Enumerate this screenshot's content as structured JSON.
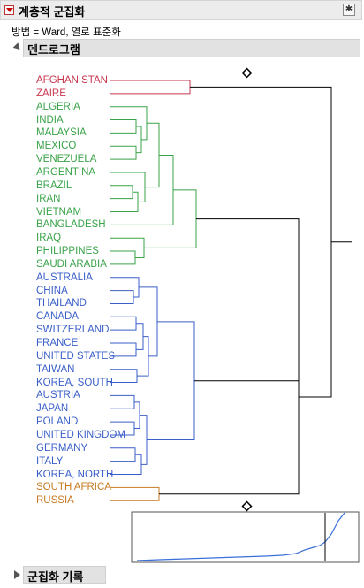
{
  "header": {
    "title": "계층적 군집화"
  },
  "method_text": "방법 = Ward, 열로 표준화",
  "dendrogram": {
    "title": "덴드로그램",
    "countries": [
      {
        "name": "AFGHANISTAN",
        "cluster": "red"
      },
      {
        "name": "ZAIRE",
        "cluster": "red"
      },
      {
        "name": "ALGERIA",
        "cluster": "green"
      },
      {
        "name": "INDIA",
        "cluster": "green"
      },
      {
        "name": "MALAYSIA",
        "cluster": "green"
      },
      {
        "name": "MEXICO",
        "cluster": "green"
      },
      {
        "name": "VENEZUELA",
        "cluster": "green"
      },
      {
        "name": "ARGENTINA",
        "cluster": "green"
      },
      {
        "name": "BRAZIL",
        "cluster": "green"
      },
      {
        "name": "IRAN",
        "cluster": "green"
      },
      {
        "name": "VIETNAM",
        "cluster": "green"
      },
      {
        "name": "BANGLADESH",
        "cluster": "green"
      },
      {
        "name": "IRAQ",
        "cluster": "green"
      },
      {
        "name": "PHILIPPINES",
        "cluster": "green"
      },
      {
        "name": "SAUDI ARABIA",
        "cluster": "green"
      },
      {
        "name": "AUSTRALIA",
        "cluster": "blue"
      },
      {
        "name": "CHINA",
        "cluster": "blue"
      },
      {
        "name": "THAILAND",
        "cluster": "blue"
      },
      {
        "name": "CANADA",
        "cluster": "blue"
      },
      {
        "name": "SWITZERLAND",
        "cluster": "blue"
      },
      {
        "name": "FRANCE",
        "cluster": "blue"
      },
      {
        "name": "UNITED STATES",
        "cluster": "blue"
      },
      {
        "name": "TAIWAN",
        "cluster": "blue"
      },
      {
        "name": "KOREA, SOUTH",
        "cluster": "blue"
      },
      {
        "name": "AUSTRIA",
        "cluster": "blue"
      },
      {
        "name": "JAPAN",
        "cluster": "blue"
      },
      {
        "name": "POLAND",
        "cluster": "blue"
      },
      {
        "name": "UNITED KINGDOM",
        "cluster": "blue"
      },
      {
        "name": "GERMANY",
        "cluster": "blue"
      },
      {
        "name": "ITALY",
        "cluster": "blue"
      },
      {
        "name": "KOREA, NORTH",
        "cluster": "blue"
      },
      {
        "name": "SOUTH AFRICA",
        "cluster": "orange"
      },
      {
        "name": "RUSSIA",
        "cluster": "orange"
      }
    ],
    "colors": {
      "red": "#c8374f",
      "green": "#3aa34a",
      "blue": "#3a5fc8",
      "orange": "#c77a22",
      "black": "#000000"
    }
  },
  "history": {
    "title": "군집화 기록"
  },
  "icons": {
    "header_menu": "red-disclosure-icon",
    "expand": "triangle-icon",
    "slider": "diamond-icon"
  }
}
